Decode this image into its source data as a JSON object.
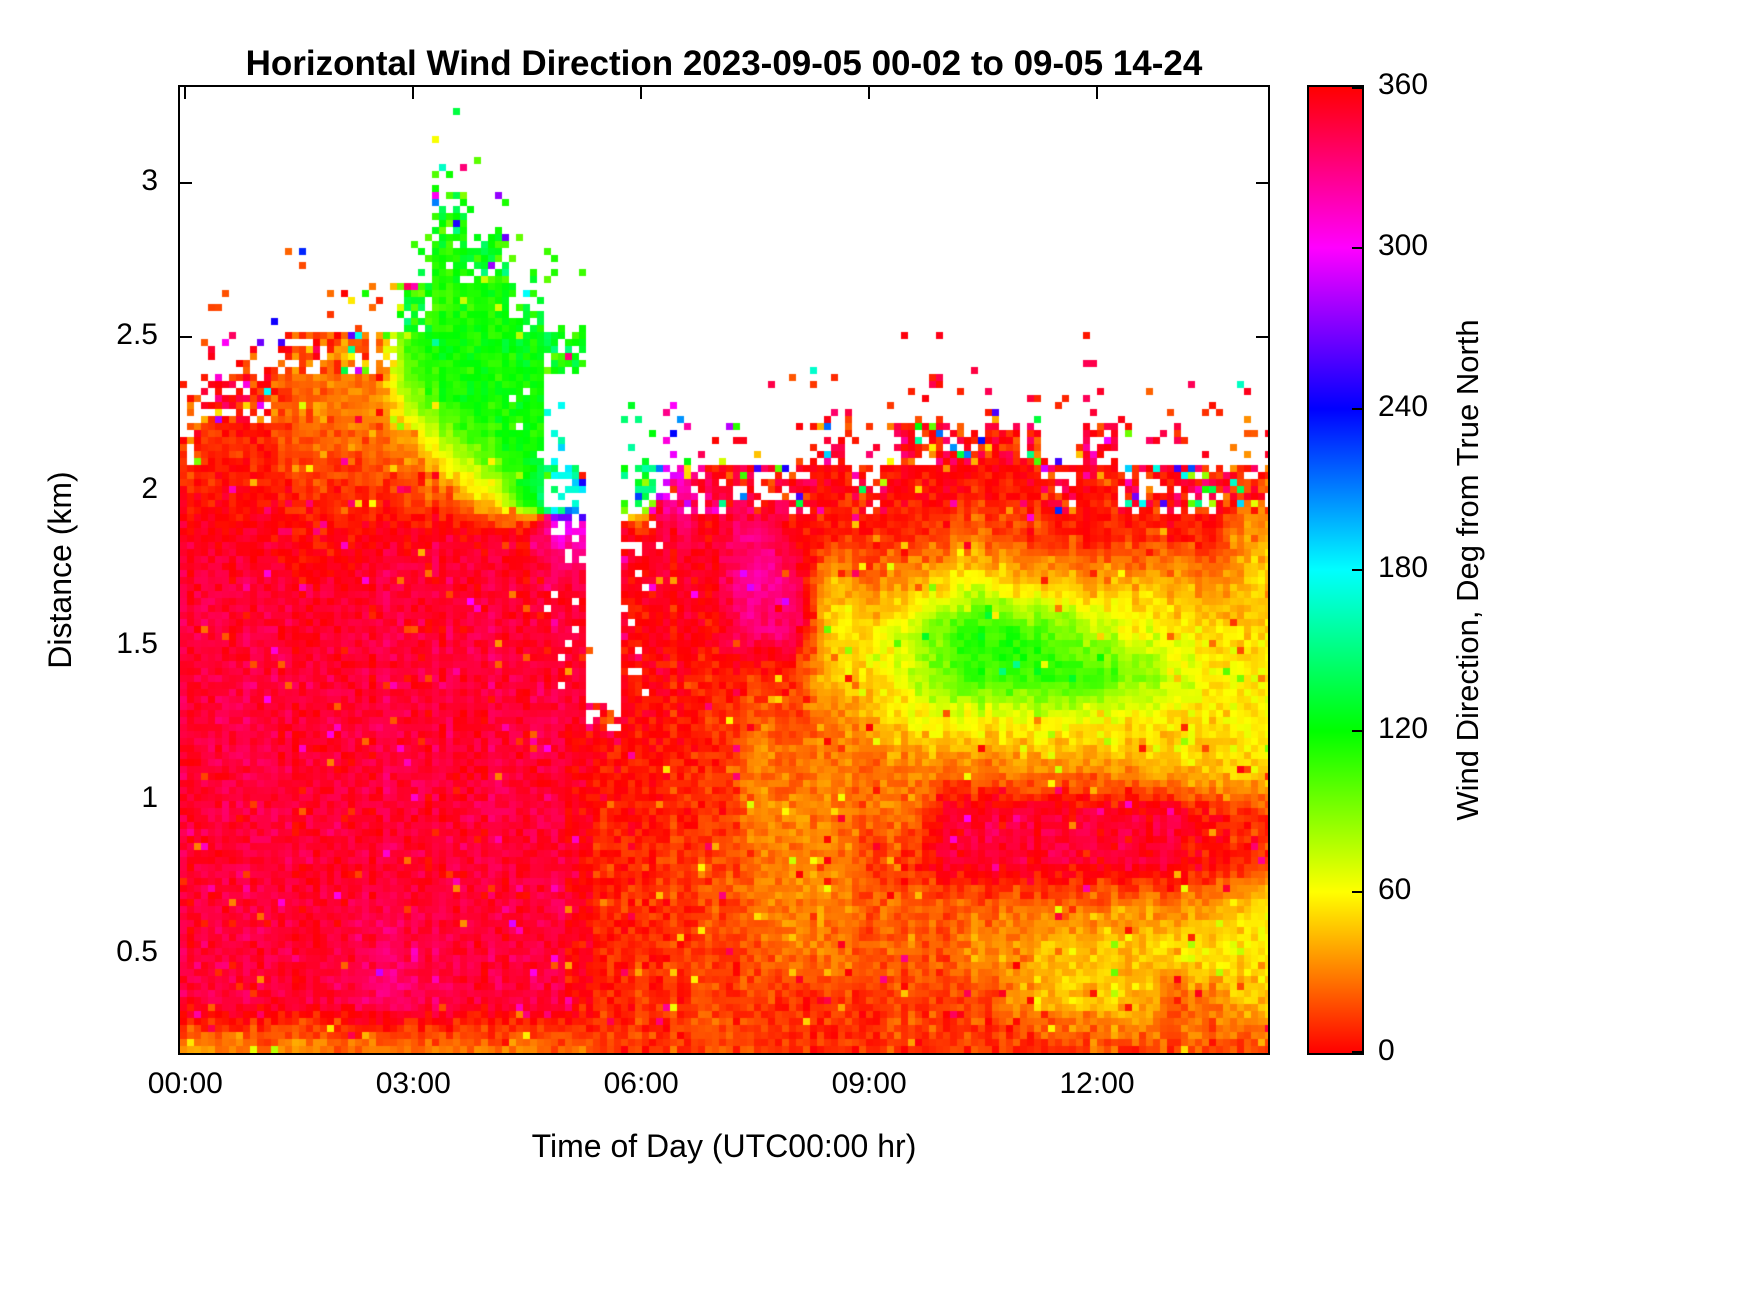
{
  "title": "Horizontal Wind Direction 2023-09-05 00-02 to 09-05 14-24",
  "x_axis": {
    "label": "Time of Day (UTC00:00 hr)",
    "tick_labels": [
      "00:00",
      "03:00",
      "06:00",
      "09:00",
      "12:00"
    ],
    "tick_values": [
      0,
      3,
      6,
      9,
      12
    ],
    "range_hours": [
      -0.07,
      14.25
    ]
  },
  "y_axis": {
    "label": "Distance (km)",
    "tick_labels": [
      "3",
      "2.5",
      "2",
      "1.5",
      "1",
      "0.5"
    ],
    "tick_values": [
      3,
      2.5,
      2,
      1.5,
      1,
      0.5
    ],
    "range_km": [
      0.18,
      3.31
    ]
  },
  "colorbar": {
    "label": "Wind Direction, Deg from True North",
    "tick_labels": [
      "360",
      "300",
      "240",
      "180",
      "120",
      "60",
      "0"
    ],
    "tick_values": [
      360,
      300,
      240,
      180,
      120,
      60,
      0
    ],
    "min": 0,
    "max": 360,
    "colormap": "hsv",
    "colors": [
      "#ff0000",
      "#ffff00",
      "#00ff00",
      "#00ffff",
      "#0000ff",
      "#ff00ff",
      "#ff0000"
    ]
  },
  "chart_data": {
    "type": "heatmap",
    "title": "Horizontal Wind Direction 2023-09-05 00-02 to 09-05 14-24",
    "xlabel": "Time of Day (UTC00:00 hr)",
    "ylabel": "Distance (km)",
    "zlabel": "Wind Direction, Deg from True North",
    "zrange": [
      0,
      360
    ],
    "units": {
      "x": "hours UTC",
      "y": "km",
      "z": "degrees from true north"
    },
    "no_data_value": null,
    "x_hours": [
      0,
      0.5,
      1,
      1.5,
      2,
      2.5,
      3,
      3.5,
      4,
      4.5,
      5,
      5.5,
      6,
      6.5,
      7,
      7.5,
      8,
      8.5,
      9,
      9.5,
      10,
      10.5,
      11,
      11.5,
      12,
      12.5,
      13,
      13.5,
      14
    ],
    "y_km": [
      3.2,
      3.05,
      2.9,
      2.75,
      2.6,
      2.45,
      2.3,
      2.15,
      2.0,
      1.85,
      1.7,
      1.55,
      1.4,
      1.25,
      1.1,
      0.95,
      0.8,
      0.65,
      0.5,
      0.35,
      0.2
    ],
    "values": [
      [
        null,
        null,
        null,
        null,
        null,
        null,
        null,
        null,
        null,
        null,
        null,
        null,
        null,
        null,
        null,
        null,
        null,
        null,
        null,
        null,
        null,
        null,
        null,
        null,
        null,
        null,
        null,
        null,
        null
      ],
      [
        null,
        null,
        null,
        null,
        null,
        null,
        null,
        null,
        null,
        null,
        null,
        null,
        null,
        null,
        null,
        null,
        null,
        null,
        null,
        null,
        null,
        null,
        null,
        null,
        null,
        null,
        null,
        null,
        null
      ],
      [
        null,
        null,
        null,
        null,
        null,
        null,
        null,
        115,
        null,
        null,
        null,
        null,
        null,
        null,
        null,
        null,
        null,
        null,
        null,
        null,
        null,
        null,
        null,
        null,
        null,
        null,
        null,
        null,
        null
      ],
      [
        null,
        null,
        null,
        null,
        null,
        null,
        null,
        115,
        120,
        null,
        null,
        null,
        null,
        null,
        null,
        null,
        null,
        null,
        null,
        null,
        null,
        null,
        null,
        null,
        null,
        null,
        null,
        null,
        null
      ],
      [
        null,
        null,
        null,
        null,
        null,
        null,
        115,
        110,
        118,
        120,
        null,
        null,
        null,
        null,
        null,
        null,
        null,
        null,
        null,
        null,
        null,
        null,
        null,
        null,
        null,
        null,
        null,
        null,
        null
      ],
      [
        null,
        null,
        null,
        15,
        20,
        25,
        110,
        120,
        115,
        122,
        120,
        null,
        null,
        null,
        null,
        null,
        null,
        null,
        null,
        null,
        null,
        null,
        null,
        null,
        null,
        null,
        null,
        null,
        null
      ],
      [
        null,
        0,
        5,
        25,
        28,
        30,
        90,
        115,
        120,
        118,
        null,
        null,
        null,
        null,
        null,
        null,
        null,
        null,
        null,
        null,
        null,
        null,
        null,
        null,
        null,
        null,
        null,
        null,
        null
      ],
      [
        15,
        10,
        12,
        18,
        22,
        25,
        35,
        85,
        110,
        120,
        null,
        null,
        null,
        null,
        null,
        null,
        null,
        358,
        null,
        356,
        0,
        358,
        0,
        null,
        358,
        null,
        null,
        null,
        null
      ],
      [
        5,
        2,
        5,
        8,
        10,
        12,
        15,
        30,
        60,
        130,
        170,
        null,
        140,
        310,
        0,
        356,
        358,
        0,
        358,
        0,
        358,
        5,
        8,
        358,
        5,
        0,
        356,
        358,
        10
      ],
      [
        355,
        352,
        355,
        0,
        358,
        355,
        355,
        352,
        352,
        356,
        310,
        null,
        356,
        352,
        352,
        328,
        0,
        8,
        12,
        8,
        20,
        25,
        15,
        10,
        8,
        12,
        10,
        8,
        40
      ],
      [
        350,
        348,
        352,
        350,
        352,
        348,
        350,
        348,
        350,
        352,
        350,
        null,
        358,
        356,
        350,
        322,
        335,
        48,
        30,
        35,
        55,
        65,
        45,
        48,
        35,
        45,
        42,
        32,
        45
      ],
      [
        348,
        350,
        348,
        350,
        348,
        350,
        348,
        350,
        345,
        350,
        348,
        null,
        0,
        0,
        355,
        330,
        340,
        50,
        58,
        70,
        100,
        112,
        108,
        95,
        80,
        62,
        58,
        55,
        48
      ],
      [
        350,
        348,
        348,
        345,
        350,
        348,
        348,
        345,
        348,
        348,
        350,
        null,
        2,
        3,
        5,
        10,
        15,
        45,
        55,
        68,
        95,
        108,
        112,
        110,
        105,
        92,
        78,
        58,
        55
      ],
      [
        348,
        345,
        350,
        348,
        348,
        345,
        350,
        348,
        350,
        345,
        348,
        358,
        3,
        5,
        8,
        25,
        20,
        30,
        40,
        52,
        60,
        55,
        58,
        62,
        60,
        55,
        50,
        52,
        55
      ],
      [
        348,
        350,
        345,
        348,
        350,
        348,
        345,
        350,
        348,
        350,
        348,
        5,
        5,
        8,
        8,
        30,
        25,
        30,
        28,
        30,
        30,
        28,
        35,
        30,
        35,
        40,
        45,
        50,
        52
      ],
      [
        350,
        348,
        348,
        350,
        345,
        350,
        348,
        350,
        345,
        348,
        350,
        8,
        5,
        10,
        10,
        28,
        35,
        28,
        25,
        28,
        350,
        348,
        350,
        348,
        352,
        350,
        348,
        5,
        10
      ],
      [
        345,
        348,
        350,
        345,
        348,
        348,
        350,
        348,
        348,
        350,
        348,
        10,
        8,
        15,
        12,
        30,
        32,
        30,
        20,
        8,
        352,
        350,
        348,
        352,
        350,
        355,
        350,
        0,
        8
      ],
      [
        348,
        350,
        345,
        348,
        350,
        345,
        348,
        345,
        350,
        348,
        345,
        12,
        10,
        12,
        15,
        25,
        35,
        30,
        22,
        22,
        22,
        18,
        28,
        25,
        28,
        35,
        32,
        40,
        55
      ],
      [
        348,
        345,
        348,
        350,
        348,
        338,
        342,
        348,
        345,
        348,
        350,
        8,
        8,
        15,
        12,
        18,
        30,
        28,
        22,
        25,
        20,
        38,
        32,
        48,
        50,
        45,
        55,
        58,
        55
      ],
      [
        345,
        348,
        350,
        348,
        345,
        335,
        340,
        345,
        348,
        345,
        348,
        10,
        10,
        12,
        15,
        12,
        12,
        10,
        12,
        15,
        15,
        12,
        40,
        42,
        48,
        52,
        22,
        30,
        45
      ],
      [
        35,
        30,
        28,
        32,
        25,
        30,
        28,
        25,
        28,
        30,
        25,
        15,
        12,
        15,
        18,
        15,
        10,
        12,
        10,
        12,
        10,
        12,
        10,
        12,
        15,
        18,
        20,
        25,
        15
      ]
    ]
  }
}
